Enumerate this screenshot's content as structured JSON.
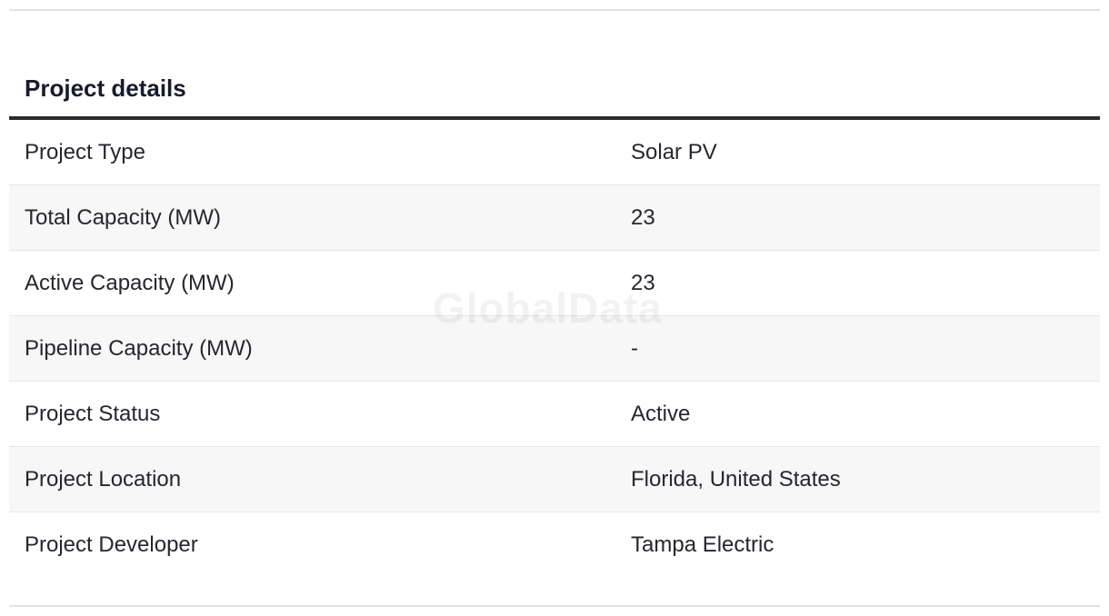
{
  "section": {
    "title": "Project details"
  },
  "watermark": "GlobalData",
  "rows": [
    {
      "label": "Project Type",
      "value": "Solar PV"
    },
    {
      "label": "Total Capacity (MW)",
      "value": "23"
    },
    {
      "label": "Active Capacity (MW)",
      "value": "23"
    },
    {
      "label": "Pipeline Capacity (MW)",
      "value": "-"
    },
    {
      "label": "Project Status",
      "value": "Active"
    },
    {
      "label": "Project Location",
      "value": "Florida, United States"
    },
    {
      "label": "Project Developer",
      "value": "Tampa Electric"
    }
  ],
  "colors": {
    "title": "#1a1a2e",
    "title_rule": "#2b2b2b",
    "row_alt_background": "#f7f7f7",
    "divider": "#e2e2e2"
  }
}
